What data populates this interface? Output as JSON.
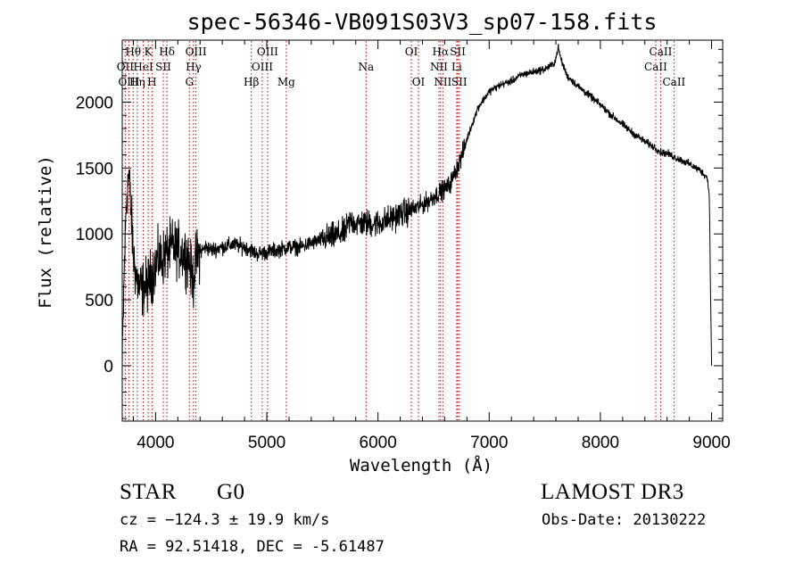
{
  "chart_data": {
    "type": "line",
    "title": "spec-56346-VB091S03V3_sp07-158.fits",
    "xlabel": "Wavelength (Å)",
    "ylabel": "Flux (relative)",
    "xlim": [
      3700,
      9100
    ],
    "ylim": [
      -420,
      2470
    ],
    "x_ticks": [
      4000,
      5000,
      6000,
      7000,
      8000,
      9000
    ],
    "x_tick_labels": [
      "4000",
      "5000",
      "6000",
      "7000",
      "8000",
      "9000"
    ],
    "y_ticks": [
      0,
      500,
      1000,
      1500,
      2000
    ],
    "y_tick_labels": [
      "0",
      "500",
      "1000",
      "1500",
      "2000"
    ],
    "grid": false,
    "legend": "none",
    "series": [
      {
        "name": "flux",
        "anchors_x": [
          3700,
          3720,
          3740,
          3760,
          3780,
          3800,
          3820,
          3850,
          3880,
          3900,
          3930,
          3970,
          4000,
          4030,
          4050,
          4100,
          4150,
          4200,
          4250,
          4300,
          4320,
          4340,
          4360,
          4400,
          4450,
          4500,
          4600,
          4700,
          4800,
          4860,
          4900,
          5000,
          5100,
          5200,
          5300,
          5400,
          5500,
          5600,
          5700,
          5750,
          5800,
          5900,
          6000,
          6100,
          6200,
          6300,
          6400,
          6500,
          6560,
          6600,
          6650,
          6700,
          6750,
          6800,
          6900,
          7000,
          7100,
          7200,
          7300,
          7400,
          7500,
          7580,
          7600,
          7620,
          7640,
          7660,
          7700,
          7800,
          7900,
          8000,
          8100,
          8200,
          8300,
          8400,
          8500,
          8540,
          8600,
          8700,
          8800,
          8900,
          8960,
          8980,
          8990,
          9000
        ],
        "anchors_y": [
          0,
          800,
          1300,
          1450,
          1150,
          850,
          700,
          600,
          580,
          600,
          620,
          700,
          760,
          820,
          800,
          860,
          900,
          880,
          850,
          820,
          700,
          650,
          800,
          860,
          900,
          880,
          900,
          920,
          900,
          880,
          850,
          860,
          880,
          900,
          900,
          930,
          960,
          980,
          1010,
          1100,
          1080,
          1080,
          1080,
          1110,
          1150,
          1180,
          1220,
          1280,
          1320,
          1340,
          1380,
          1480,
          1580,
          1720,
          1960,
          2080,
          2130,
          2160,
          2210,
          2230,
          2250,
          2290,
          2330,
          2420,
          2340,
          2290,
          2200,
          2120,
          2050,
          1980,
          1900,
          1830,
          1760,
          1700,
          1650,
          1620,
          1610,
          1570,
          1530,
          1480,
          1430,
          1300,
          600,
          0
        ],
        "noise_amplitude": [
          [
            3700,
            4400,
            160
          ],
          [
            4400,
            5500,
            45
          ],
          [
            5500,
            6300,
            80
          ],
          [
            6300,
            6800,
            55
          ],
          [
            6800,
            9000,
            22
          ]
        ]
      }
    ],
    "lines": [
      {
        "label": "OII",
        "wavelength": 3727,
        "row": 2
      },
      {
        "label": "OIII",
        "wavelength": 3760,
        "row": 3
      },
      {
        "label": "Hθ",
        "wavelength": 3798,
        "row": 1
      },
      {
        "label": "Hη",
        "wavelength": 3835,
        "row": 3
      },
      {
        "label": "HeI",
        "wavelength": 3889,
        "row": 2
      },
      {
        "label": "K",
        "wavelength": 3934,
        "row": 1
      },
      {
        "label": "H",
        "wavelength": 3968,
        "row": 3
      },
      {
        "label": "SII",
        "wavelength": 4069,
        "row": 2
      },
      {
        "label": "Hδ",
        "wavelength": 4102,
        "row": 1
      },
      {
        "label": "G",
        "wavelength": 4304,
        "row": 3
      },
      {
        "label": "Hγ",
        "wavelength": 4341,
        "row": 2
      },
      {
        "label": "OIII",
        "wavelength": 4363,
        "row": 1
      },
      {
        "label": "Hβ",
        "wavelength": 4861,
        "row": 3
      },
      {
        "label": "OIII",
        "wavelength": 4959,
        "row": 2
      },
      {
        "label": "OIII",
        "wavelength": 5007,
        "row": 1
      },
      {
        "label": "Mg",
        "wavelength": 5175,
        "row": 3
      },
      {
        "label": "Na",
        "wavelength": 5893,
        "row": 2
      },
      {
        "label": "OI",
        "wavelength": 6300,
        "row": 1
      },
      {
        "label": "OI",
        "wavelength": 6364,
        "row": 3
      },
      {
        "label": "NII",
        "wavelength": 6548,
        "row": 2
      },
      {
        "label": "Hα",
        "wavelength": 6563,
        "row": 1
      },
      {
        "label": "NII",
        "wavelength": 6583,
        "row": 3
      },
      {
        "label": "Li",
        "wavelength": 6708,
        "row": 2
      },
      {
        "label": "SII",
        "wavelength": 6717,
        "row": 1
      },
      {
        "label": "SII",
        "wavelength": 6731,
        "row": 3
      },
      {
        "label": "CaII",
        "wavelength": 8498,
        "row": 2
      },
      {
        "label": "CaII",
        "wavelength": 8542,
        "row": 1
      },
      {
        "label": "CaII",
        "wavelength": 8662,
        "row": 3
      }
    ],
    "line_color": "#c00000"
  },
  "info": {
    "object_class": "STAR",
    "subclass": "G0",
    "survey": "LAMOST DR3",
    "redshift": "cz = −124.3 ± 19.9 km/s",
    "obs_date": "Obs-Date: 20130222",
    "coords": "RA =  92.51418, DEC =  -5.61487"
  }
}
